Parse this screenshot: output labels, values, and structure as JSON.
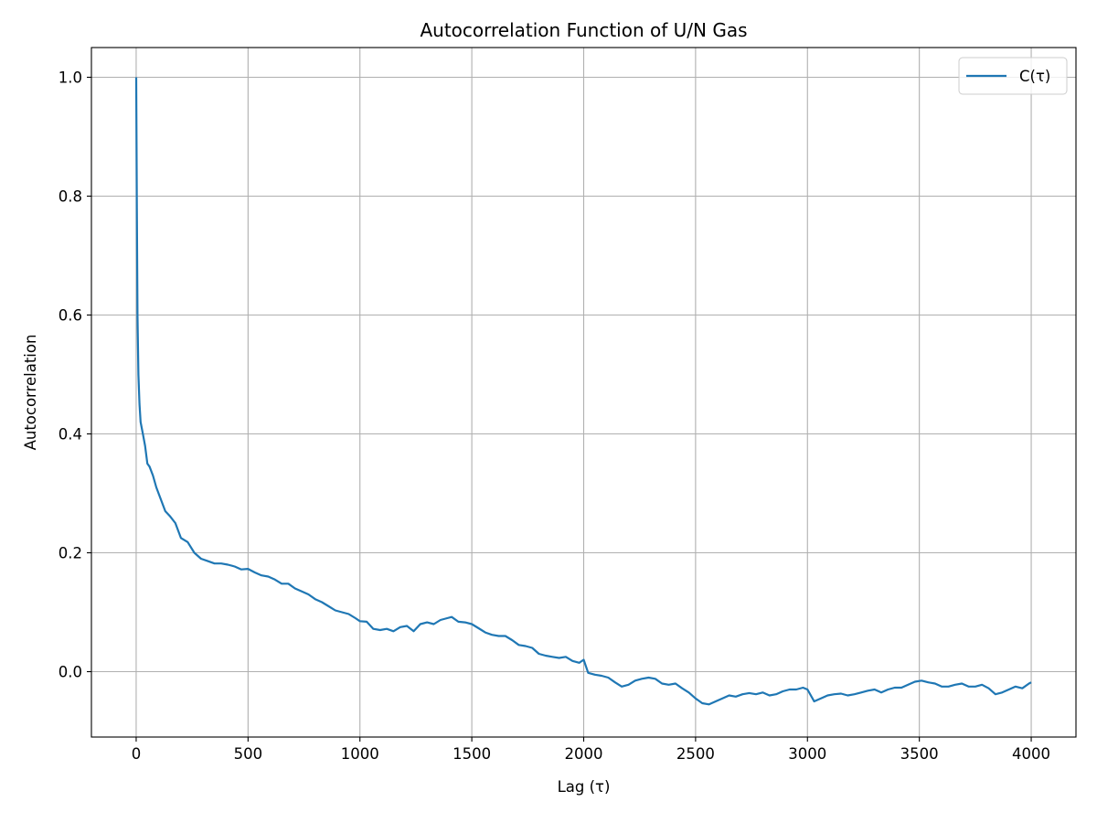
{
  "chart_data": {
    "type": "line",
    "title": "Autocorrelation Function of U/N Gas",
    "xlabel": "Lag (τ)",
    "ylabel": "Autocorrelation",
    "xlim": [
      -200,
      4200
    ],
    "ylim": [
      -0.11,
      1.05
    ],
    "x_ticks": [
      0,
      500,
      1000,
      1500,
      2000,
      2500,
      3000,
      3500,
      4000
    ],
    "y_ticks": [
      0.0,
      0.2,
      0.4,
      0.6,
      0.8,
      1.0
    ],
    "y_tick_labels": [
      "0.0",
      "0.2",
      "0.4",
      "0.6",
      "0.8",
      "1.0"
    ],
    "grid": true,
    "legend_position": "top-right",
    "series": [
      {
        "name": "C(τ)",
        "color": "#1f77b4",
        "x": [
          0,
          3,
          6,
          10,
          15,
          20,
          30,
          40,
          50,
          60,
          75,
          90,
          110,
          130,
          150,
          175,
          200,
          230,
          260,
          290,
          320,
          350,
          380,
          410,
          440,
          470,
          500,
          530,
          560,
          590,
          620,
          650,
          680,
          710,
          740,
          770,
          800,
          830,
          860,
          890,
          920,
          950,
          980,
          1000,
          1030,
          1060,
          1090,
          1120,
          1150,
          1180,
          1210,
          1240,
          1270,
          1300,
          1330,
          1360,
          1390,
          1410,
          1440,
          1470,
          1500,
          1530,
          1560,
          1590,
          1620,
          1650,
          1680,
          1710,
          1740,
          1770,
          1800,
          1830,
          1860,
          1890,
          1920,
          1950,
          1980,
          2000,
          2020,
          2050,
          2080,
          2110,
          2140,
          2170,
          2200,
          2230,
          2260,
          2290,
          2320,
          2350,
          2380,
          2410,
          2440,
          2470,
          2500,
          2530,
          2560,
          2590,
          2620,
          2650,
          2680,
          2710,
          2740,
          2770,
          2800,
          2830,
          2860,
          2890,
          2920,
          2950,
          2980,
          3000,
          3030,
          3060,
          3090,
          3120,
          3150,
          3180,
          3210,
          3240,
          3270,
          3300,
          3330,
          3360,
          3390,
          3420,
          3450,
          3480,
          3510,
          3540,
          3570,
          3600,
          3630,
          3660,
          3690,
          3720,
          3750,
          3780,
          3810,
          3840,
          3870,
          3900,
          3930,
          3960,
          3990,
          4000
        ],
        "values": [
          1.0,
          0.78,
          0.6,
          0.5,
          0.45,
          0.42,
          0.4,
          0.38,
          0.35,
          0.345,
          0.33,
          0.31,
          0.29,
          0.27,
          0.262,
          0.25,
          0.225,
          0.218,
          0.2,
          0.19,
          0.186,
          0.182,
          0.182,
          0.18,
          0.177,
          0.172,
          0.173,
          0.167,
          0.162,
          0.16,
          0.155,
          0.148,
          0.148,
          0.14,
          0.135,
          0.13,
          0.122,
          0.117,
          0.11,
          0.103,
          0.1,
          0.097,
          0.09,
          0.085,
          0.084,
          0.072,
          0.07,
          0.072,
          0.068,
          0.075,
          0.077,
          0.068,
          0.08,
          0.083,
          0.08,
          0.087,
          0.09,
          0.092,
          0.084,
          0.083,
          0.08,
          0.073,
          0.066,
          0.062,
          0.06,
          0.06,
          0.053,
          0.045,
          0.043,
          0.04,
          0.03,
          0.027,
          0.025,
          0.023,
          0.025,
          0.018,
          0.015,
          0.02,
          -0.002,
          -0.005,
          -0.007,
          -0.01,
          -0.018,
          -0.025,
          -0.022,
          -0.015,
          -0.012,
          -0.01,
          -0.012,
          -0.02,
          -0.022,
          -0.02,
          -0.028,
          -0.035,
          -0.045,
          -0.053,
          -0.055,
          -0.05,
          -0.045,
          -0.04,
          -0.042,
          -0.038,
          -0.036,
          -0.038,
          -0.035,
          -0.04,
          -0.038,
          -0.033,
          -0.03,
          -0.03,
          -0.027,
          -0.03,
          -0.05,
          -0.045,
          -0.04,
          -0.038,
          -0.037,
          -0.04,
          -0.038,
          -0.035,
          -0.032,
          -0.03,
          -0.035,
          -0.03,
          -0.027,
          -0.027,
          -0.022,
          -0.017,
          -0.015,
          -0.018,
          -0.02,
          -0.025,
          -0.025,
          -0.022,
          -0.02,
          -0.025,
          -0.025,
          -0.022,
          -0.028,
          -0.038,
          -0.035,
          -0.03,
          -0.025,
          -0.028,
          -0.02,
          -0.018
        ]
      }
    ]
  }
}
